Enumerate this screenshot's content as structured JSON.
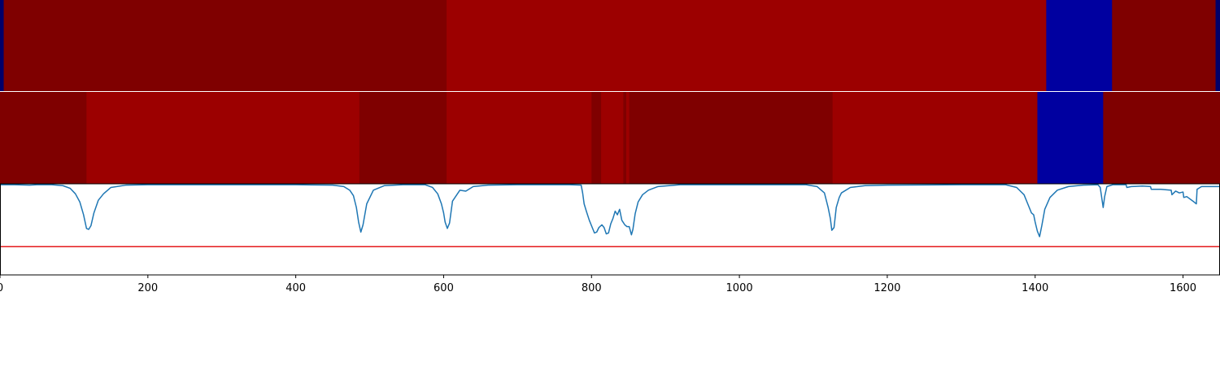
{
  "chart_data": {
    "type": "heatmap",
    "xlim": [
      0,
      1650
    ],
    "x_ticks": [
      0,
      200,
      400,
      600,
      800,
      1000,
      1200,
      1400,
      1600
    ],
    "x_tick_labels": [
      "0",
      "200",
      "400",
      "600",
      "800",
      "1000",
      "1200",
      "1400",
      "1600"
    ],
    "colors": {
      "dark_red": "#7f0000",
      "red": "#9c0000",
      "blue": "#0000a0",
      "navy": "#00006a",
      "line": "#1f77b4",
      "threshold": "#e41a1c"
    },
    "track_1": {
      "segments": [
        {
          "start": 0,
          "end": 5,
          "color": "navy"
        },
        {
          "start": 5,
          "end": 604,
          "color": "dark_red"
        },
        {
          "start": 604,
          "end": 1415,
          "color": "red"
        },
        {
          "start": 1415,
          "end": 1504,
          "color": "blue"
        },
        {
          "start": 1504,
          "end": 1644,
          "color": "dark_red"
        },
        {
          "start": 1644,
          "end": 1650,
          "color": "navy"
        }
      ]
    },
    "track_2": {
      "segments": [
        {
          "start": 0,
          "end": 117,
          "color": "dark_red"
        },
        {
          "start": 117,
          "end": 486,
          "color": "red"
        },
        {
          "start": 486,
          "end": 604,
          "color": "dark_red"
        },
        {
          "start": 604,
          "end": 800,
          "color": "red"
        },
        {
          "start": 800,
          "end": 813,
          "color": "dark_red"
        },
        {
          "start": 813,
          "end": 843,
          "color": "red"
        },
        {
          "start": 843,
          "end": 847,
          "color": "dark_red"
        },
        {
          "start": 847,
          "end": 851,
          "color": "red"
        },
        {
          "start": 851,
          "end": 1126,
          "color": "dark_red"
        },
        {
          "start": 1126,
          "end": 1403,
          "color": "red"
        },
        {
          "start": 1403,
          "end": 1492,
          "color": "blue"
        },
        {
          "start": 1492,
          "end": 1650,
          "color": "dark_red"
        }
      ]
    },
    "signal": {
      "ylim": [
        0,
        1
      ],
      "threshold": 0.31,
      "points": [
        [
          0,
          0.99
        ],
        [
          20,
          0.99
        ],
        [
          40,
          0.985
        ],
        [
          50,
          0.99
        ],
        [
          70,
          0.99
        ],
        [
          85,
          0.98
        ],
        [
          95,
          0.95
        ],
        [
          102,
          0.89
        ],
        [
          108,
          0.8
        ],
        [
          113,
          0.66
        ],
        [
          117,
          0.51
        ],
        [
          120,
          0.5
        ],
        [
          123,
          0.54
        ],
        [
          127,
          0.68
        ],
        [
          133,
          0.82
        ],
        [
          140,
          0.89
        ],
        [
          150,
          0.96
        ],
        [
          170,
          0.985
        ],
        [
          200,
          0.99
        ],
        [
          300,
          0.99
        ],
        [
          400,
          0.99
        ],
        [
          450,
          0.985
        ],
        [
          465,
          0.97
        ],
        [
          473,
          0.93
        ],
        [
          478,
          0.87
        ],
        [
          482,
          0.74
        ],
        [
          485,
          0.58
        ],
        [
          488,
          0.47
        ],
        [
          491,
          0.55
        ],
        [
          496,
          0.78
        ],
        [
          505,
          0.93
        ],
        [
          520,
          0.98
        ],
        [
          545,
          0.99
        ],
        [
          575,
          0.99
        ],
        [
          585,
          0.96
        ],
        [
          592,
          0.89
        ],
        [
          597,
          0.78
        ],
        [
          600,
          0.68
        ],
        [
          602,
          0.58
        ],
        [
          605,
          0.51
        ],
        [
          608,
          0.57
        ],
        [
          612,
          0.81
        ],
        [
          622,
          0.93
        ],
        [
          630,
          0.92
        ],
        [
          640,
          0.97
        ],
        [
          660,
          0.985
        ],
        [
          700,
          0.99
        ],
        [
          770,
          0.99
        ],
        [
          786,
          0.985
        ],
        [
          788,
          0.9
        ],
        [
          790,
          0.78
        ],
        [
          793,
          0.7
        ],
        [
          797,
          0.6
        ],
        [
          801,
          0.52
        ],
        [
          804,
          0.46
        ],
        [
          807,
          0.47
        ],
        [
          810,
          0.52
        ],
        [
          814,
          0.55
        ],
        [
          817,
          0.52
        ],
        [
          820,
          0.45
        ],
        [
          823,
          0.46
        ],
        [
          826,
          0.56
        ],
        [
          829,
          0.62
        ],
        [
          832,
          0.7
        ],
        [
          835,
          0.66
        ],
        [
          838,
          0.72
        ],
        [
          841,
          0.6
        ],
        [
          845,
          0.55
        ],
        [
          848,
          0.53
        ],
        [
          851,
          0.53
        ],
        [
          854,
          0.44
        ],
        [
          856,
          0.5
        ],
        [
          859,
          0.67
        ],
        [
          863,
          0.8
        ],
        [
          869,
          0.88
        ],
        [
          877,
          0.93
        ],
        [
          890,
          0.97
        ],
        [
          920,
          0.99
        ],
        [
          1000,
          0.99
        ],
        [
          1090,
          0.99
        ],
        [
          1105,
          0.97
        ],
        [
          1115,
          0.9
        ],
        [
          1120,
          0.74
        ],
        [
          1123,
          0.62
        ],
        [
          1125,
          0.49
        ],
        [
          1128,
          0.52
        ],
        [
          1131,
          0.74
        ],
        [
          1135,
          0.85
        ],
        [
          1138,
          0.9
        ],
        [
          1150,
          0.96
        ],
        [
          1170,
          0.98
        ],
        [
          1200,
          0.985
        ],
        [
          1300,
          0.99
        ],
        [
          1360,
          0.99
        ],
        [
          1375,
          0.96
        ],
        [
          1385,
          0.88
        ],
        [
          1391,
          0.76
        ],
        [
          1395,
          0.68
        ],
        [
          1398,
          0.66
        ],
        [
          1400,
          0.58
        ],
        [
          1403,
          0.48
        ],
        [
          1406,
          0.42
        ],
        [
          1409,
          0.54
        ],
        [
          1413,
          0.72
        ],
        [
          1420,
          0.85
        ],
        [
          1430,
          0.93
        ],
        [
          1445,
          0.97
        ],
        [
          1465,
          0.985
        ],
        [
          1485,
          0.99
        ],
        [
          1488,
          0.96
        ],
        [
          1490,
          0.85
        ],
        [
          1492,
          0.74
        ],
        [
          1494,
          0.86
        ],
        [
          1497,
          0.97
        ],
        [
          1505,
          0.99
        ],
        [
          1523,
          0.99
        ],
        [
          1524,
          0.96
        ],
        [
          1530,
          0.97
        ],
        [
          1545,
          0.975
        ],
        [
          1556,
          0.97
        ],
        [
          1557,
          0.94
        ],
        [
          1570,
          0.94
        ],
        [
          1584,
          0.93
        ],
        [
          1585,
          0.88
        ],
        [
          1590,
          0.92
        ],
        [
          1595,
          0.9
        ],
        [
          1600,
          0.91
        ],
        [
          1601,
          0.85
        ],
        [
          1605,
          0.86
        ],
        [
          1615,
          0.8
        ],
        [
          1618,
          0.78
        ],
        [
          1619,
          0.94
        ],
        [
          1625,
          0.97
        ],
        [
          1650,
          0.97
        ]
      ]
    }
  }
}
